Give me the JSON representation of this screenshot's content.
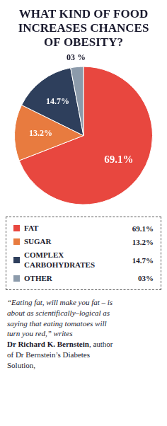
{
  "chart_data": {
    "type": "pie",
    "title": "WHAT KIND OF FOOD\nINCREASES CHANCES\nOF OBESITY?",
    "categories": [
      "FAT",
      "SUGAR",
      "COMPLEX\nCARBOHYDRATES",
      "OTHER"
    ],
    "values": [
      69.1,
      13.2,
      14.7,
      3.0
    ],
    "colors": [
      "#e8473f",
      "#e87b3f",
      "#2e3f5c",
      "#8c9bab"
    ],
    "data_labels": true,
    "value_labels": [
      "69.1%",
      "13.2%",
      "14.7%",
      "03 %"
    ],
    "legend_value_labels": [
      "69.1%",
      "13.2%",
      "14.7%",
      "03%"
    ],
    "annotations": [
      "“Eating fat, will make you fat – is\nabout as scientifically–logical as\nsaying that eating tomatoes will\nturn you red,” writes\n",
      "Dr Richard K. Bernstein",
      ", author\nof Dr Bernstein’s Diabetes\nSolution,"
    ]
  }
}
